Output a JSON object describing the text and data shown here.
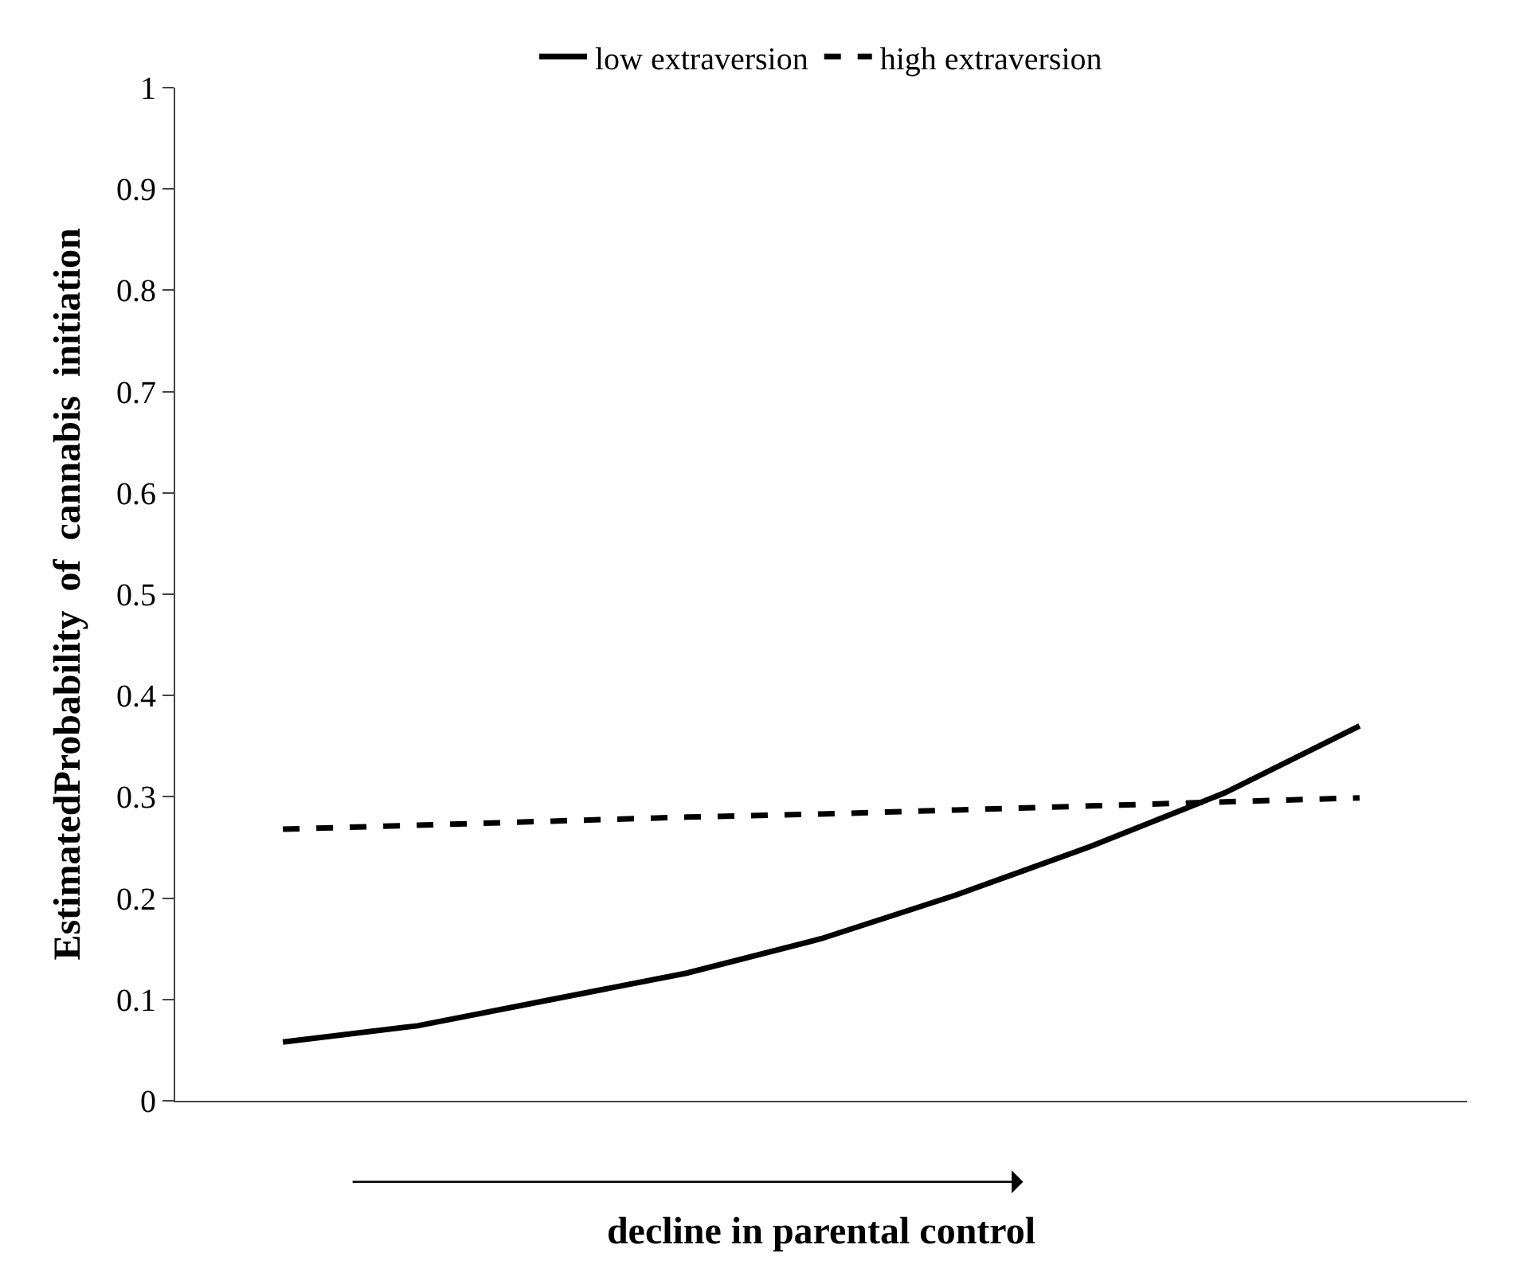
{
  "chart_data": {
    "type": "line",
    "xlabel": "decline in parental control",
    "ylabel": "EstimatedProbability  of  cannabis  initiation",
    "categories": [
      null,
      null,
      null,
      null,
      null,
      null,
      null,
      null,
      null
    ],
    "series": [
      {
        "name": "low extraversion",
        "color": "#000000",
        "line_style": "solid",
        "values": [
          0.058,
          0.074,
          0.1,
          0.126,
          0.16,
          0.203,
          0.251,
          0.304,
          0.37
        ]
      },
      {
        "name": "high extraversion",
        "color": "#000000",
        "line_style": "dashed",
        "values": [
          0.268,
          0.272,
          0.276,
          0.28,
          0.283,
          0.287,
          0.291,
          0.295,
          0.299
        ]
      }
    ],
    "ylim": [
      0,
      1
    ],
    "yticks": [
      0,
      0.1,
      0.2,
      0.3,
      0.4,
      0.5,
      0.6,
      0.7,
      0.8,
      0.9,
      1
    ],
    "legend": "top",
    "marker": "none",
    "tick_labels": "y"
  }
}
